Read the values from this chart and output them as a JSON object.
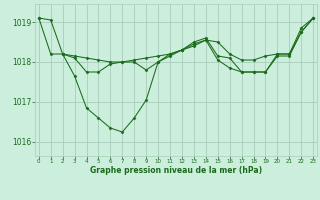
{
  "background_color": "#cceedd",
  "grid_color": "#aaccbb",
  "line_color": "#1a6b1a",
  "title": "Graphe pression niveau de la mer (hPa)",
  "xlim": [
    -0.3,
    23.3
  ],
  "ylim": [
    1015.65,
    1019.45
  ],
  "yticks": [
    1016,
    1017,
    1018,
    1019
  ],
  "xtick_labels": [
    "0",
    "1",
    "2",
    "3",
    "4",
    "5",
    "6",
    "7",
    "8",
    "9",
    "10",
    "11",
    "12",
    "13",
    "14",
    "15",
    "16",
    "17",
    "18",
    "19",
    "20",
    "21",
    "22",
    "23"
  ],
  "series": [
    {
      "x": [
        0,
        1,
        2,
        3,
        4,
        5,
        6,
        7,
        8,
        9,
        10,
        11,
        12,
        13,
        14,
        15,
        16,
        17,
        18,
        19,
        20,
        21,
        22,
        23
      ],
      "y": [
        1019.1,
        1019.05,
        1018.2,
        1017.65,
        1016.85,
        1016.6,
        1016.35,
        1016.25,
        1016.6,
        1017.05,
        1018.0,
        1018.2,
        1018.3,
        1018.45,
        1018.55,
        1018.05,
        1017.85,
        1017.75,
        1017.75,
        1017.75,
        1018.15,
        1018.15,
        1018.75,
        1019.1
      ]
    },
    {
      "x": [
        0,
        1,
        2,
        3,
        4,
        5,
        6,
        7,
        8,
        9,
        10,
        11,
        12,
        13,
        14,
        15,
        16,
        17,
        18,
        19,
        20,
        21,
        22,
        23
      ],
      "y": [
        1019.1,
        1018.2,
        1018.2,
        1018.15,
        1018.1,
        1018.05,
        1018.0,
        1018.0,
        1018.05,
        1018.1,
        1018.15,
        1018.2,
        1018.3,
        1018.4,
        1018.55,
        1018.5,
        1018.2,
        1018.05,
        1018.05,
        1018.15,
        1018.2,
        1018.2,
        1018.75,
        1019.1
      ]
    },
    {
      "x": [
        2,
        3,
        4,
        5,
        6,
        7,
        8,
        9,
        10,
        11,
        12,
        13,
        14,
        15,
        16,
        17,
        18,
        19,
        20,
        21,
        22,
        23
      ],
      "y": [
        1018.2,
        1018.1,
        1017.75,
        1017.75,
        1017.95,
        1018.0,
        1018.0,
        1017.8,
        1018.0,
        1018.15,
        1018.3,
        1018.5,
        1018.6,
        1018.15,
        1018.1,
        1017.75,
        1017.75,
        1017.75,
        1018.2,
        1018.2,
        1018.85,
        1019.1
      ]
    }
  ]
}
